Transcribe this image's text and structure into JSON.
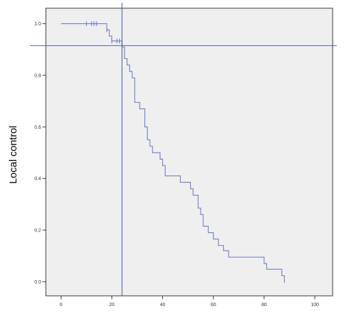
{
  "chart_data": {
    "type": "line",
    "title": "",
    "xlabel": "",
    "ylabel": "Local control",
    "xlim": [
      -6,
      107
    ],
    "ylim": [
      -0.055,
      1.06
    ],
    "x_ticks": [
      0,
      20,
      40,
      60,
      80,
      100
    ],
    "x_tick_labels": [
      "0",
      "20",
      "40",
      "60",
      "80",
      "100"
    ],
    "y_ticks": [
      0.0,
      0.2,
      0.4,
      0.6,
      0.8,
      1.0
    ],
    "y_tick_labels": [
      "0.0",
      "0.2",
      "0.4",
      "0.6",
      "0.8",
      "1.0"
    ],
    "grid": false,
    "reference_lines": {
      "vertical_x": 24,
      "horizontal_y": 0.915
    },
    "colors": {
      "plot_background": "#efefef",
      "curve": "#6b7cc9",
      "reference_line": "#3f68a4"
    },
    "series": [
      {
        "curve_type": "step",
        "x": [
          0,
          18,
          19,
          20,
          24,
          25,
          26,
          27,
          28,
          29,
          31,
          33,
          34,
          35,
          36,
          39,
          40,
          41,
          47,
          51,
          52,
          54,
          55,
          56,
          58,
          60,
          62,
          64,
          66,
          80,
          81,
          87,
          88
        ],
        "y": [
          1.0,
          0.976,
          0.952,
          0.933,
          0.91,
          0.865,
          0.84,
          0.815,
          0.79,
          0.695,
          0.67,
          0.6,
          0.55,
          0.525,
          0.5,
          0.475,
          0.45,
          0.41,
          0.385,
          0.36,
          0.335,
          0.285,
          0.26,
          0.215,
          0.19,
          0.165,
          0.14,
          0.12,
          0.095,
          0.07,
          0.048,
          0.023,
          0.0
        ],
        "censored_x": [
          10,
          12,
          13,
          14,
          18,
          20,
          22,
          23
        ]
      }
    ]
  }
}
